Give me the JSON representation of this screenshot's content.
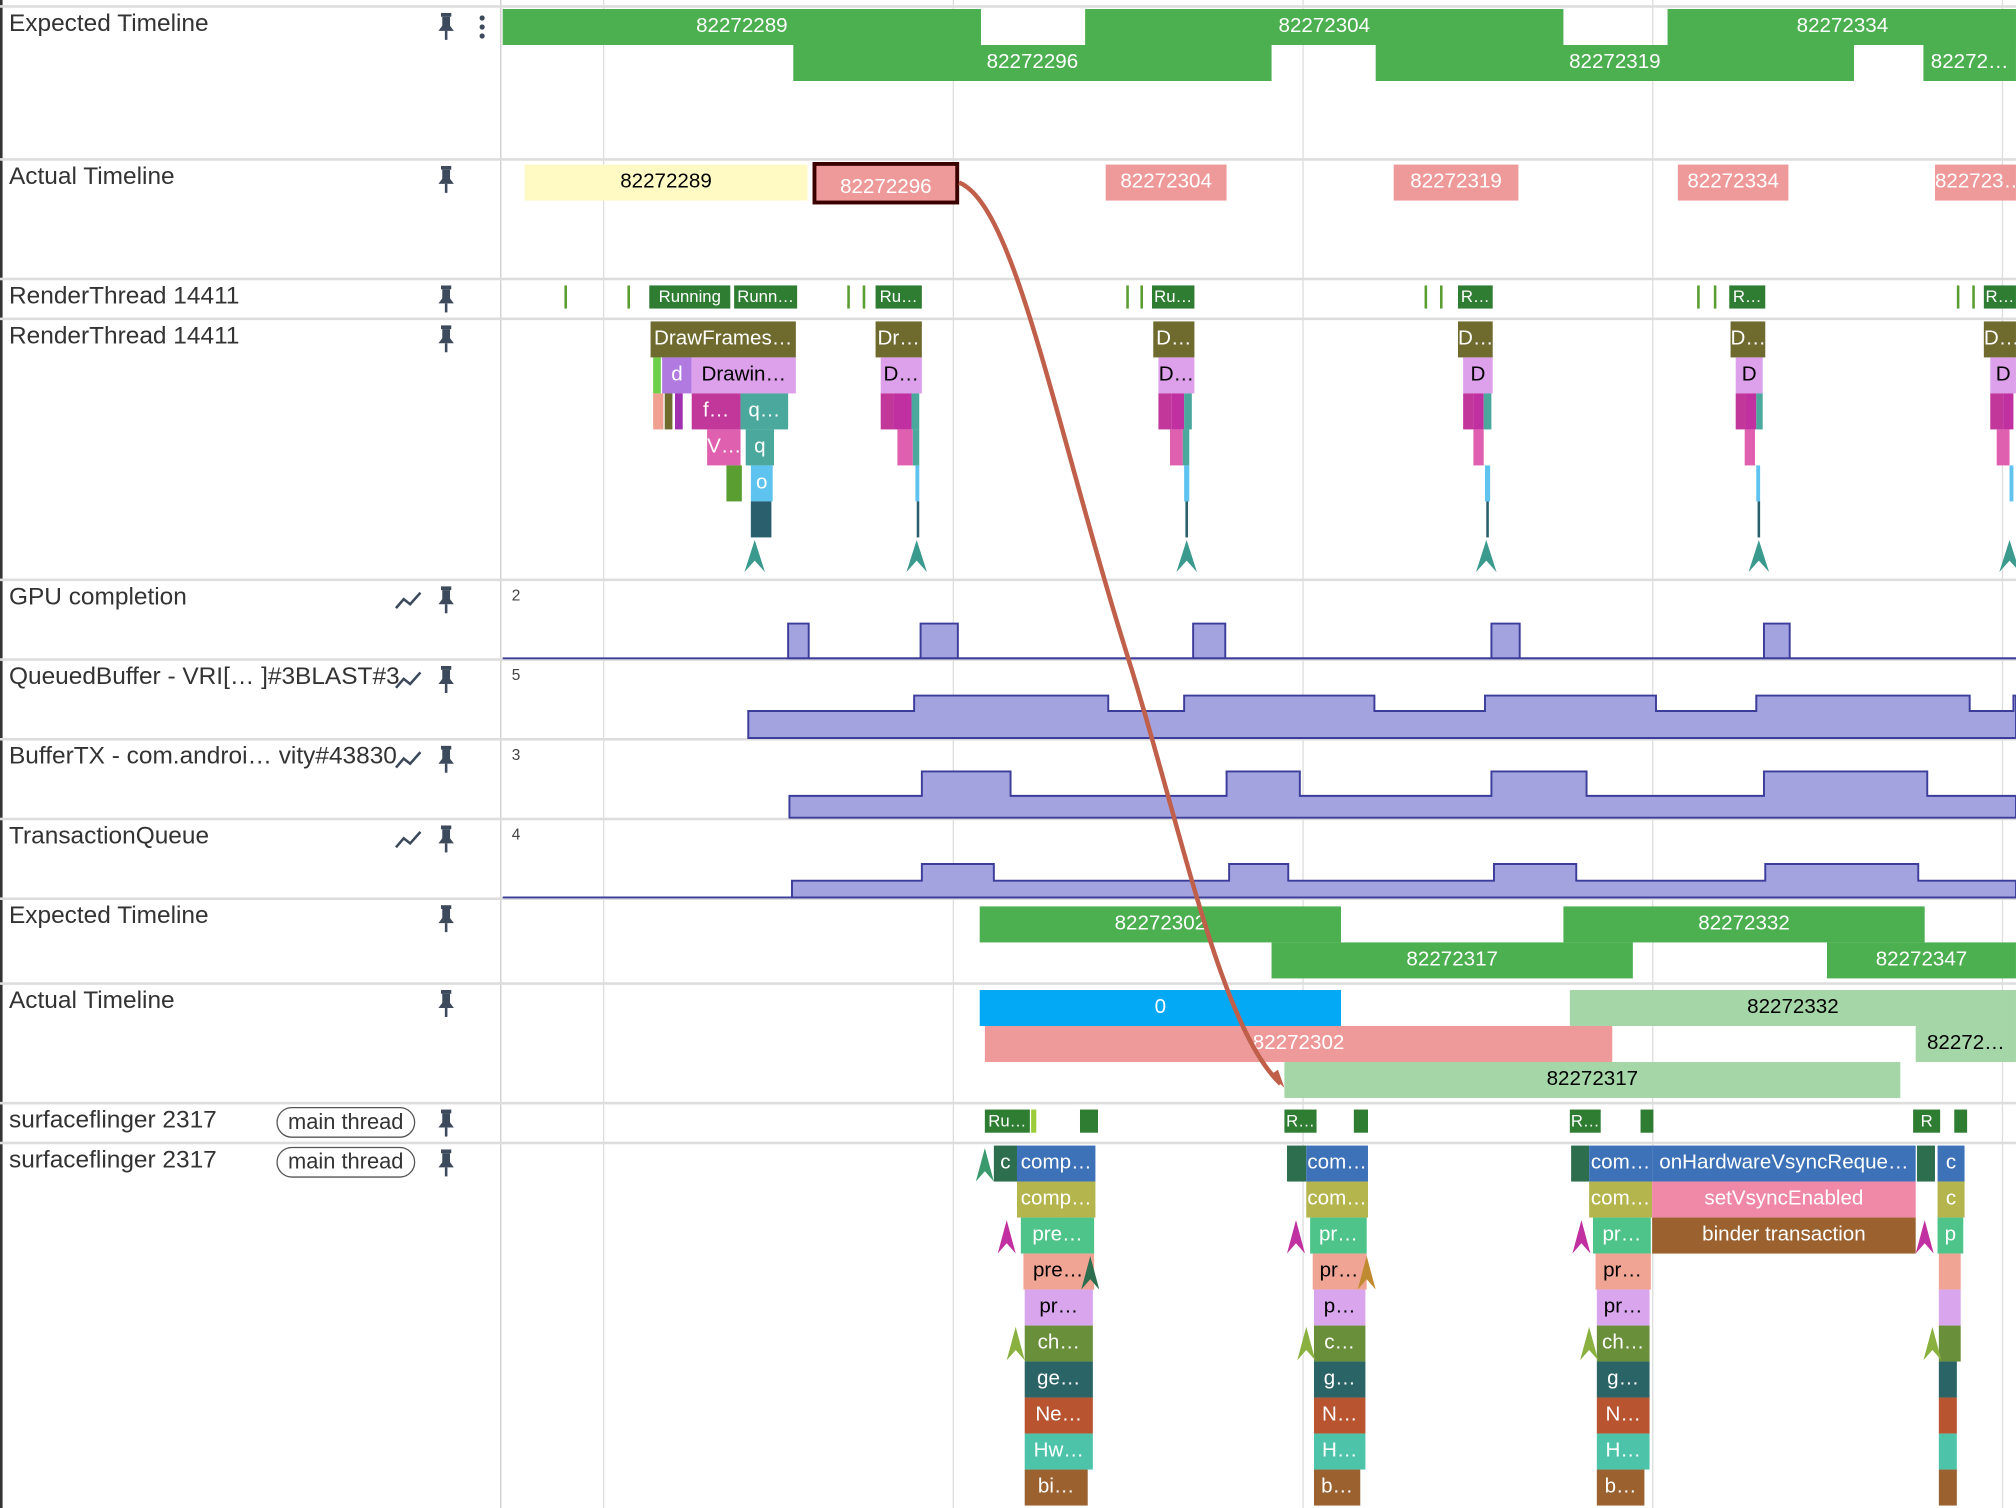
{
  "tracks": [
    {
      "name": "Expected Timeline",
      "labels": [
        "82272289",
        "82272304",
        "82272334",
        "82272296",
        "82272319",
        "82272…"
      ]
    },
    {
      "name": "Actual Timeline",
      "labels": [
        "82272289",
        "82272296",
        "82272304",
        "82272319",
        "82272334",
        "822723…"
      ],
      "selected": "82272296"
    },
    {
      "name": "RenderThread 14411",
      "labels": [
        "Running",
        "Runn…",
        "Ru…",
        "Ru…",
        "R…",
        "R…",
        "R…"
      ]
    },
    {
      "name": "RenderThread 14411",
      "labels": [
        "DrawFrames…",
        "Dr…",
        "D…",
        "D…",
        "D…",
        "D…",
        "d",
        "Drawin…",
        "D…",
        "D…",
        "D",
        "D",
        "D",
        "f…",
        "q…",
        "V…",
        "q",
        "o"
      ]
    },
    {
      "name": "GPU completion",
      "max": "2"
    },
    {
      "name": "QueuedBuffer - VRI[…  ]#3BLAST#3",
      "max": "5"
    },
    {
      "name": "BufferTX - com.androi… vity#43830",
      "max": "3"
    },
    {
      "name": "TransactionQueue",
      "max": "4"
    },
    {
      "name": "Expected Timeline",
      "labels": [
        "82272302",
        "82272332",
        "82272317",
        "82272347"
      ]
    },
    {
      "name": "Actual Timeline",
      "labels": [
        "0",
        "82272332",
        "82272302",
        "82272…",
        "82272317"
      ]
    },
    {
      "name": "surfaceflinger 2317",
      "tag": "main thread",
      "labels": [
        "Ru…",
        "R…",
        "R…",
        "R"
      ]
    },
    {
      "name": "surfaceflinger 2317",
      "tag": "main thread",
      "labels": [
        "c",
        "comp…",
        "comp…",
        "pre…",
        "pre…",
        "pr…",
        "ch…",
        "ge…",
        "Ne…",
        "Hw…",
        "bi…",
        "com…",
        "com…",
        "pr…",
        "pr…",
        "p…",
        "c…",
        "g…",
        "N…",
        "H…",
        "b…",
        "com…",
        "com…",
        "pr…",
        "pr…",
        "pr…",
        "ch…",
        "g…",
        "N…",
        "H…",
        "b…",
        "onHardwareVsyncReque…",
        "setVsyncEnabled",
        "binder transaction",
        "c",
        "c",
        "p"
      ]
    }
  ],
  "icons": {
    "pin": "pin-icon",
    "menu": "more-vert-icon",
    "counter": "line-chart-icon"
  },
  "colors": {
    "expected": "#4caf50",
    "actual_late": "#ef9a9a",
    "actual_ok": "#a5d6a7",
    "actual_blue": "#03a9f4",
    "actual_yellow": "#fff9c4",
    "running": "#2e7d32",
    "flow": "#c0604a",
    "counter": "#a3a3e0"
  }
}
